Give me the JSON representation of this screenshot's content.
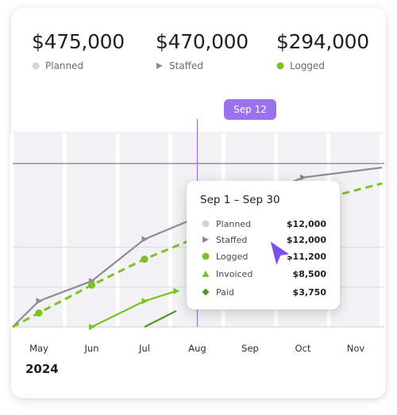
{
  "colors": {
    "planned": "#d4d4d8",
    "staffed": "#8c8c94",
    "logged": "#7ac226",
    "invoiced": "#7ac226",
    "paid": "#4f9a1c",
    "accent": "#9a72ec",
    "cursor": "#7a4ff0"
  },
  "stats": [
    {
      "value": "$475,000",
      "label": "Planned",
      "icon": "planned-dot-icon"
    },
    {
      "value": "$470,000",
      "label": "Staffed",
      "icon": "staffed-triangle-icon"
    },
    {
      "value": "$294,000",
      "label": "Logged",
      "icon": "logged-dot-icon"
    }
  ],
  "day_tag": "Sep 12",
  "months": [
    "May",
    "Jun",
    "Jul",
    "Aug",
    "Sep",
    "Oct",
    "Nov"
  ],
  "year": "2024",
  "tooltip": {
    "title": "Sep 1 – Sep 30",
    "rows": [
      {
        "name": "Planned",
        "value": "$12,000",
        "icon": "planned-dot-icon"
      },
      {
        "name": "Staffed",
        "value": "$12,000",
        "icon": "staffed-triangle-icon"
      },
      {
        "name": "Logged",
        "value": "$11,200",
        "icon": "logged-dot-icon"
      },
      {
        "name": "Invoiced",
        "value": "$8,500",
        "icon": "invoiced-triangle-icon"
      },
      {
        "name": "Paid",
        "value": "$3,750",
        "icon": "paid-diamond-icon"
      }
    ]
  },
  "chart_data": {
    "type": "line",
    "categories": [
      "May",
      "Jun",
      "Jul",
      "Aug",
      "Sep",
      "Oct",
      "Nov"
    ],
    "series": [
      {
        "name": "Staffed",
        "style": "solid",
        "marker": "triangle",
        "values": [
          0.0,
          1.3,
          2.3,
          4.4,
          5.5,
          6.4,
          7.5,
          8.0
        ],
        "x": [
          -0.5,
          0,
          1,
          2,
          3,
          4,
          5,
          6.5
        ]
      },
      {
        "name": "Logged",
        "style": "dashed",
        "marker": "circle",
        "values": [
          0.0,
          0.7,
          2.1,
          3.4,
          4.5,
          5.5,
          7.2
        ],
        "x": [
          -0.5,
          0,
          1,
          2,
          3,
          4,
          6.5
        ]
      },
      {
        "name": "Invoiced",
        "style": "solid",
        "marker": "triangle",
        "values": [
          0.0,
          1.3,
          1.8
        ],
        "x": [
          1.0,
          2.0,
          2.6
        ]
      },
      {
        "name": "Paid",
        "style": "solid",
        "marker": "none",
        "values": [
          0.0,
          0.8
        ],
        "x": [
          2.0,
          2.6
        ]
      }
    ],
    "reference_line": {
      "label": "Planned",
      "value": 8.2
    },
    "selected": "Sep 12",
    "ylim": [
      0,
      9
    ],
    "grid": true
  }
}
